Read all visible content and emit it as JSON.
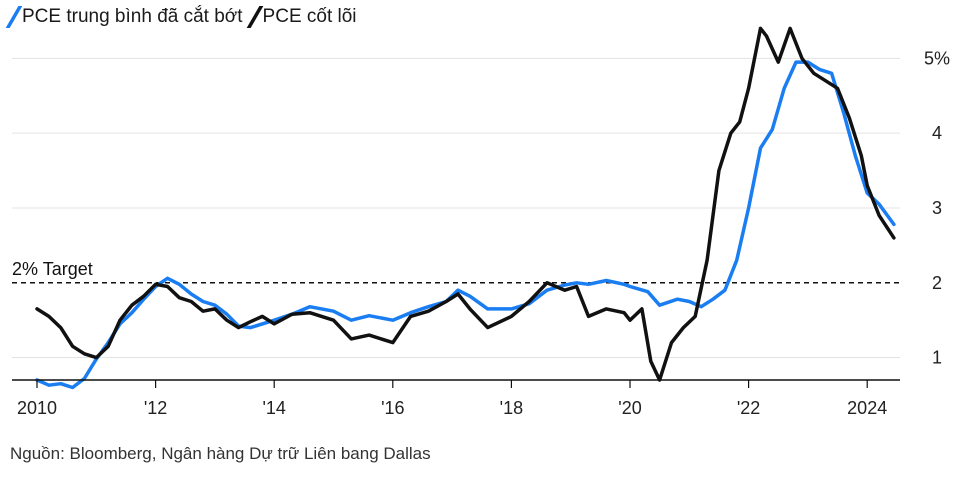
{
  "legend": {
    "series1_label": "PCE trung bình đã cắt bớt",
    "series2_label": "PCE cốt lõi"
  },
  "source": "Nguồn: Bloomberg, Ngân hàng Dự trữ Liên bang Dallas",
  "chart_data": {
    "type": "line",
    "title": "",
    "xlabel": "",
    "ylabel": "",
    "xlim": [
      2010.0,
      2025.0
    ],
    "ylim": [
      0.7,
      5.3
    ],
    "x_ticks": [
      {
        "value": 2010,
        "label": "2010"
      },
      {
        "value": 2012,
        "label": "'12"
      },
      {
        "value": 2014,
        "label": "'14"
      },
      {
        "value": 2016,
        "label": "'16"
      },
      {
        "value": 2018,
        "label": "'18"
      },
      {
        "value": 2020,
        "label": "'20"
      },
      {
        "value": 2022,
        "label": "'22"
      },
      {
        "value": 2024,
        "label": "2024"
      }
    ],
    "y_ticks": [
      {
        "value": 1,
        "label": "1"
      },
      {
        "value": 2,
        "label": "2"
      },
      {
        "value": 3,
        "label": "3"
      },
      {
        "value": 4,
        "label": "4"
      },
      {
        "value": 5,
        "label": "5%"
      }
    ],
    "grid": "horizontal",
    "reference_line": {
      "value": 2,
      "label": "2% Target",
      "style": "dashed"
    },
    "series": [
      {
        "name": "PCE trung bình đã cắt bớt",
        "color": "#1a7ef2",
        "points": [
          [
            2010.0,
            0.7
          ],
          [
            2010.2,
            0.63
          ],
          [
            2010.4,
            0.65
          ],
          [
            2010.6,
            0.6
          ],
          [
            2010.8,
            0.72
          ],
          [
            2011.0,
            0.98
          ],
          [
            2011.2,
            1.2
          ],
          [
            2011.4,
            1.45
          ],
          [
            2011.6,
            1.6
          ],
          [
            2011.8,
            1.78
          ],
          [
            2012.0,
            1.95
          ],
          [
            2012.2,
            2.06
          ],
          [
            2012.4,
            1.98
          ],
          [
            2012.6,
            1.85
          ],
          [
            2012.8,
            1.75
          ],
          [
            2013.0,
            1.7
          ],
          [
            2013.2,
            1.58
          ],
          [
            2013.4,
            1.42
          ],
          [
            2013.6,
            1.4
          ],
          [
            2013.8,
            1.45
          ],
          [
            2014.0,
            1.5
          ],
          [
            2014.3,
            1.58
          ],
          [
            2014.6,
            1.68
          ],
          [
            2015.0,
            1.62
          ],
          [
            2015.3,
            1.5
          ],
          [
            2015.6,
            1.56
          ],
          [
            2016.0,
            1.5
          ],
          [
            2016.3,
            1.6
          ],
          [
            2016.6,
            1.68
          ],
          [
            2016.9,
            1.75
          ],
          [
            2017.1,
            1.9
          ],
          [
            2017.3,
            1.82
          ],
          [
            2017.6,
            1.65
          ],
          [
            2018.0,
            1.65
          ],
          [
            2018.3,
            1.72
          ],
          [
            2018.6,
            1.9
          ],
          [
            2018.9,
            1.97
          ],
          [
            2019.1,
            2.0
          ],
          [
            2019.3,
            1.98
          ],
          [
            2019.6,
            2.03
          ],
          [
            2019.9,
            1.98
          ],
          [
            2020.0,
            1.95
          ],
          [
            2020.3,
            1.88
          ],
          [
            2020.5,
            1.7
          ],
          [
            2020.8,
            1.78
          ],
          [
            2021.0,
            1.75
          ],
          [
            2021.2,
            1.68
          ],
          [
            2021.4,
            1.78
          ],
          [
            2021.6,
            1.9
          ],
          [
            2021.8,
            2.3
          ],
          [
            2022.0,
            3.0
          ],
          [
            2022.2,
            3.8
          ],
          [
            2022.4,
            4.05
          ],
          [
            2022.6,
            4.6
          ],
          [
            2022.8,
            4.95
          ],
          [
            2023.0,
            4.95
          ],
          [
            2023.2,
            4.85
          ],
          [
            2023.4,
            4.8
          ],
          [
            2023.6,
            4.28
          ],
          [
            2023.8,
            3.7
          ],
          [
            2024.0,
            3.2
          ],
          [
            2024.2,
            3.05
          ],
          [
            2024.45,
            2.78
          ]
        ]
      },
      {
        "name": "PCE cốt lõi",
        "color": "#111111",
        "points": [
          [
            2010.0,
            1.65
          ],
          [
            2010.2,
            1.55
          ],
          [
            2010.4,
            1.4
          ],
          [
            2010.6,
            1.15
          ],
          [
            2010.8,
            1.05
          ],
          [
            2011.0,
            1.0
          ],
          [
            2011.2,
            1.15
          ],
          [
            2011.4,
            1.5
          ],
          [
            2011.6,
            1.7
          ],
          [
            2011.8,
            1.82
          ],
          [
            2012.0,
            1.98
          ],
          [
            2012.2,
            1.95
          ],
          [
            2012.4,
            1.8
          ],
          [
            2012.6,
            1.75
          ],
          [
            2012.8,
            1.62
          ],
          [
            2013.0,
            1.65
          ],
          [
            2013.2,
            1.5
          ],
          [
            2013.4,
            1.4
          ],
          [
            2013.6,
            1.48
          ],
          [
            2013.8,
            1.55
          ],
          [
            2014.0,
            1.45
          ],
          [
            2014.3,
            1.58
          ],
          [
            2014.6,
            1.6
          ],
          [
            2015.0,
            1.5
          ],
          [
            2015.3,
            1.25
          ],
          [
            2015.6,
            1.3
          ],
          [
            2016.0,
            1.2
          ],
          [
            2016.3,
            1.55
          ],
          [
            2016.6,
            1.62
          ],
          [
            2016.9,
            1.75
          ],
          [
            2017.1,
            1.85
          ],
          [
            2017.3,
            1.65
          ],
          [
            2017.6,
            1.4
          ],
          [
            2018.0,
            1.55
          ],
          [
            2018.3,
            1.75
          ],
          [
            2018.6,
            2.0
          ],
          [
            2018.9,
            1.9
          ],
          [
            2019.1,
            1.95
          ],
          [
            2019.3,
            1.55
          ],
          [
            2019.6,
            1.65
          ],
          [
            2019.9,
            1.6
          ],
          [
            2020.0,
            1.5
          ],
          [
            2020.2,
            1.65
          ],
          [
            2020.35,
            0.95
          ],
          [
            2020.5,
            0.7
          ],
          [
            2020.7,
            1.2
          ],
          [
            2020.9,
            1.4
          ],
          [
            2021.1,
            1.55
          ],
          [
            2021.3,
            2.3
          ],
          [
            2021.5,
            3.5
          ],
          [
            2021.7,
            4.0
          ],
          [
            2021.85,
            4.15
          ],
          [
            2022.0,
            4.6
          ],
          [
            2022.2,
            5.4
          ],
          [
            2022.3,
            5.3
          ],
          [
            2022.5,
            4.95
          ],
          [
            2022.7,
            5.4
          ],
          [
            2022.9,
            5.0
          ],
          [
            2023.1,
            4.8
          ],
          [
            2023.3,
            4.7
          ],
          [
            2023.5,
            4.6
          ],
          [
            2023.7,
            4.2
          ],
          [
            2023.9,
            3.7
          ],
          [
            2024.0,
            3.3
          ],
          [
            2024.2,
            2.9
          ],
          [
            2024.45,
            2.6
          ]
        ]
      }
    ]
  }
}
